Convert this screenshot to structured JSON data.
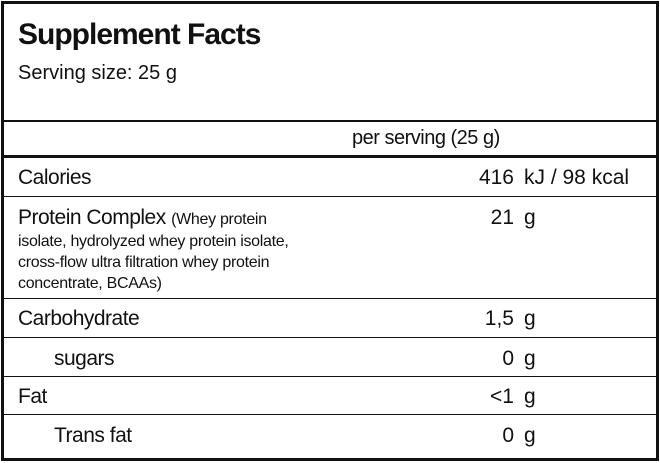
{
  "header": {
    "title": "Supplement Facts",
    "serving_size": "Serving size: 25 g"
  },
  "table": {
    "column_header": "per serving (25 g)",
    "rows": [
      {
        "name": "Calories",
        "amount": "416",
        "unit": "kJ / 98 kcal"
      },
      {
        "name": "Protein Complex",
        "description": "(Whey protein isolate, hydrolyzed whey protein isolate, cross-flow ultra filtration whey protein concentrate, BCAAs)",
        "amount": "21",
        "unit": "g"
      },
      {
        "name": "Carbohydrate",
        "amount": "1,5",
        "unit": "g"
      },
      {
        "name": "sugars",
        "amount": "0",
        "unit": "g"
      },
      {
        "name": "Fat",
        "amount": "<1",
        "unit": "g"
      },
      {
        "name": "Trans fat",
        "amount": "0",
        "unit": "g"
      }
    ]
  }
}
